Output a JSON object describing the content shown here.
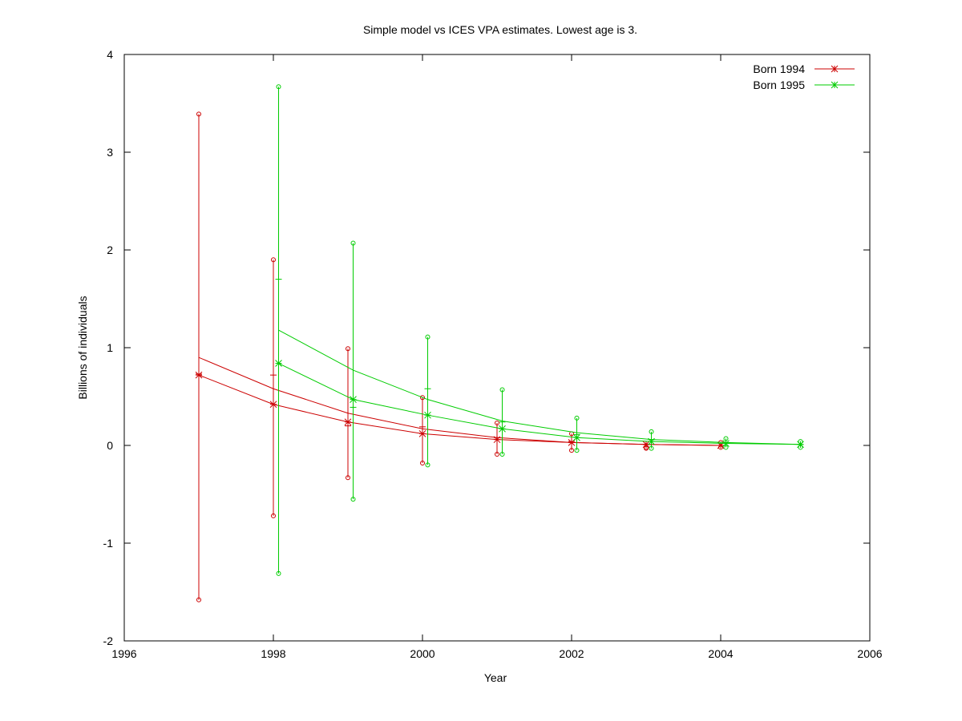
{
  "chart_data": {
    "type": "line",
    "title": "Simple model vs ICES VPA estimates. Lowest age is 3.",
    "xlabel": "Year",
    "ylabel": "Billions of individuals",
    "xlim": [
      1996,
      2006
    ],
    "ylim": [
      -2,
      4
    ],
    "xticks": [
      "1996",
      "1998",
      "2000",
      "2002",
      "2004",
      "2006"
    ],
    "yticks": [
      "-2",
      "-1",
      "0",
      "1",
      "2",
      "3",
      "4"
    ],
    "legend_position": "top-right",
    "series": [
      {
        "name": "Born 1994",
        "color": "#cc0000",
        "points": [
          {
            "x": 1997,
            "model": 0.72,
            "vpa": 0.73,
            "low": -1.58,
            "high": 3.39
          },
          {
            "x": 1998,
            "model": 0.42,
            "vpa": 0.72,
            "low": -0.72,
            "high": 1.9
          },
          {
            "x": 1999,
            "model": 0.24,
            "vpa": 0.2,
            "low": -0.33,
            "high": 0.99
          },
          {
            "x": 2000,
            "model": 0.12,
            "vpa": 0.19,
            "low": -0.18,
            "high": 0.49
          },
          {
            "x": 2001,
            "model": 0.06,
            "vpa": 0.08,
            "low": -0.09,
            "high": 0.23
          },
          {
            "x": 2002,
            "model": 0.03,
            "vpa": 0.04,
            "low": -0.05,
            "high": 0.12
          },
          {
            "x": 2003,
            "model": 0.01,
            "vpa": 0.01,
            "low": -0.03,
            "high": -0.02
          },
          {
            "x": 2004,
            "model": 0.0,
            "vpa": 0.0,
            "low": -0.02,
            "high": 0.03
          }
        ],
        "upper_curve": [
          {
            "x": 1997,
            "y": 0.9
          },
          {
            "x": 1998,
            "y": 0.58
          },
          {
            "x": 1999,
            "y": 0.33
          },
          {
            "x": 2000,
            "y": 0.17
          },
          {
            "x": 2001,
            "y": 0.08
          },
          {
            "x": 2002,
            "y": 0.03
          },
          {
            "x": 2003,
            "y": 0.01
          },
          {
            "x": 2004,
            "y": 0.0
          }
        ]
      },
      {
        "name": "Born 1995",
        "color": "#00cc00",
        "points": [
          {
            "x": 1998.07,
            "model": 0.84,
            "vpa": 1.7,
            "low": -1.31,
            "high": 3.67
          },
          {
            "x": 1999.07,
            "model": 0.47,
            "vpa": 0.39,
            "low": -0.55,
            "high": 2.07
          },
          {
            "x": 2000.07,
            "model": 0.31,
            "vpa": 0.58,
            "low": -0.2,
            "high": 1.11
          },
          {
            "x": 2001.07,
            "model": 0.17,
            "vpa": 0.24,
            "low": -0.09,
            "high": 0.57
          },
          {
            "x": 2002.07,
            "model": 0.08,
            "vpa": 0.11,
            "low": -0.05,
            "high": 0.28
          },
          {
            "x": 2003.07,
            "model": 0.04,
            "vpa": 0.06,
            "low": -0.03,
            "high": 0.14
          },
          {
            "x": 2004.07,
            "model": 0.02,
            "vpa": 0.03,
            "low": -0.02,
            "high": 0.07
          },
          {
            "x": 2005.07,
            "model": 0.01,
            "vpa": 0.01,
            "low": -0.02,
            "high": 0.04
          }
        ],
        "upper_curve": [
          {
            "x": 1998.07,
            "y": 1.18
          },
          {
            "x": 1999.07,
            "y": 0.77
          },
          {
            "x": 2000.07,
            "y": 0.47
          },
          {
            "x": 2001.07,
            "y": 0.25
          },
          {
            "x": 2002.07,
            "y": 0.13
          },
          {
            "x": 2003.07,
            "y": 0.06
          },
          {
            "x": 2004.07,
            "y": 0.03
          },
          {
            "x": 2005.07,
            "y": 0.01
          }
        ]
      }
    ]
  }
}
